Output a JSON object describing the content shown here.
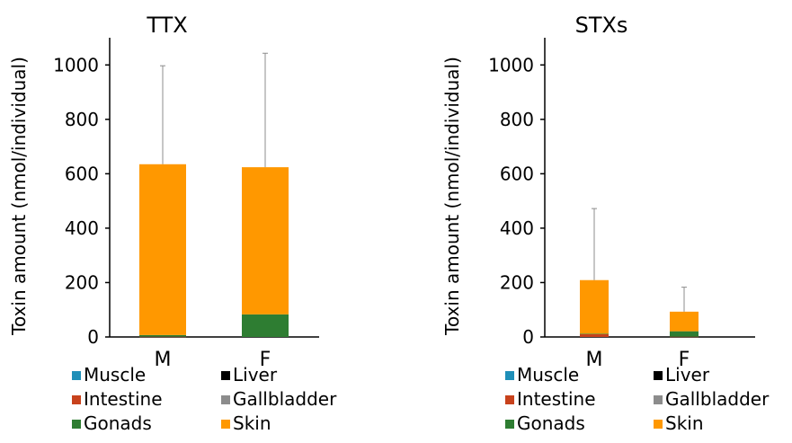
{
  "chart_data": [
    {
      "type": "bar",
      "stacked": true,
      "title": "TTX",
      "ylabel": "Toxin amount (nmol/individual)",
      "xlabel": "",
      "ylim": [
        0,
        1100
      ],
      "yticks": [
        0,
        200,
        400,
        600,
        800,
        1000
      ],
      "grid": false,
      "categories": [
        "M",
        "F"
      ],
      "series": [
        {
          "name": "Muscle",
          "color": "#1f8fb8",
          "values": [
            0,
            0
          ]
        },
        {
          "name": "Liver",
          "color": "#000000",
          "values": [
            0,
            0
          ]
        },
        {
          "name": "Intestine",
          "color": "#c8421c",
          "values": [
            1,
            0
          ]
        },
        {
          "name": "Gallbladder",
          "color": "#8c8c8c",
          "values": [
            0,
            0
          ]
        },
        {
          "name": "Gonads",
          "color": "#2e7d32",
          "values": [
            6,
            83
          ]
        },
        {
          "name": "Skin",
          "color": "#ff9800",
          "values": [
            628,
            541
          ]
        }
      ],
      "error_upper": [
        997,
        1043
      ],
      "legend_position": "bottom"
    },
    {
      "type": "bar",
      "stacked": true,
      "title": "STXs",
      "ylabel": "Toxin amount (nmol/individual)",
      "xlabel": "",
      "ylim": [
        0,
        1100
      ],
      "yticks": [
        0,
        200,
        400,
        600,
        800,
        1000
      ],
      "grid": false,
      "categories": [
        "M",
        "F"
      ],
      "series": [
        {
          "name": "Muscle",
          "color": "#1f8fb8",
          "values": [
            0,
            0
          ]
        },
        {
          "name": "Liver",
          "color": "#000000",
          "values": [
            0,
            0
          ]
        },
        {
          "name": "Intestine",
          "color": "#c8421c",
          "values": [
            10,
            1
          ]
        },
        {
          "name": "Gallbladder",
          "color": "#8c8c8c",
          "values": [
            0,
            0
          ]
        },
        {
          "name": "Gonads",
          "color": "#2e7d32",
          "values": [
            2,
            20
          ]
        },
        {
          "name": "Skin",
          "color": "#ff9800",
          "values": [
            197,
            72
          ]
        }
      ],
      "error_upper": [
        472,
        183
      ],
      "legend_position": "bottom"
    }
  ]
}
